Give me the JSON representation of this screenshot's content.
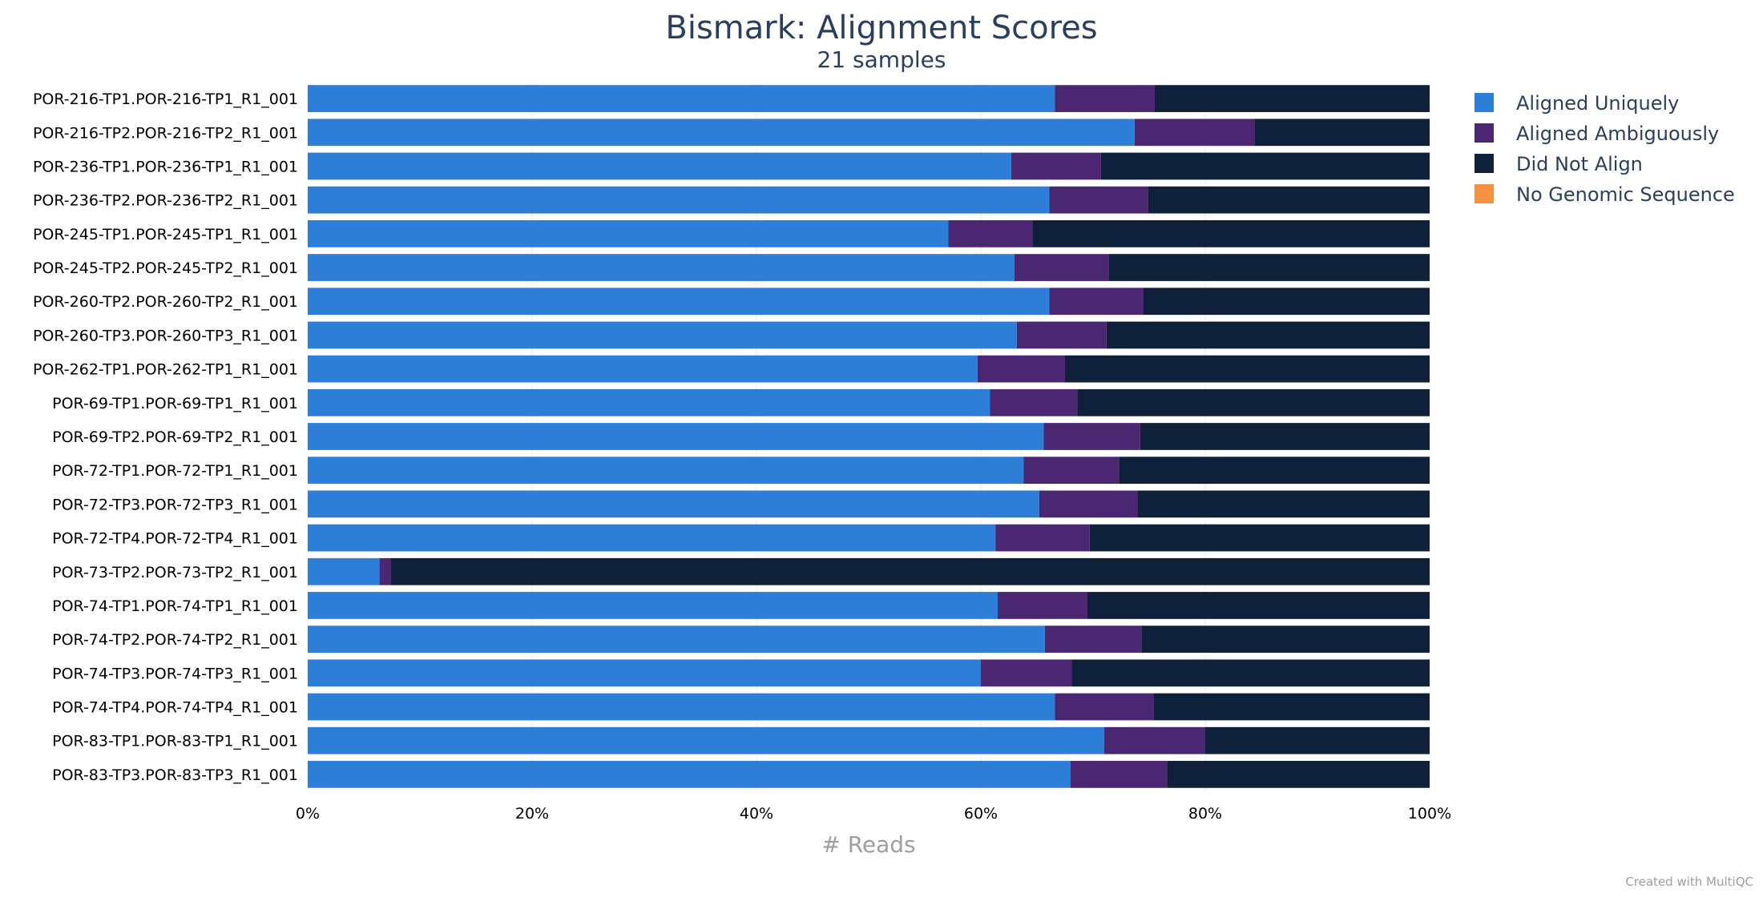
{
  "chart_data": {
    "type": "bar",
    "orientation": "horizontal",
    "stacked": true,
    "normalized": true,
    "title": "Bismark: Alignment Scores",
    "subtitle": "21 samples",
    "xlabel": "# Reads",
    "xlim": [
      0,
      100
    ],
    "x_ticks": [
      "0%",
      "20%",
      "40%",
      "60%",
      "80%",
      "100%"
    ],
    "grid": true,
    "legend_position": "top-right",
    "categories": [
      "POR-216-TP1.POR-216-TP1_R1_001",
      "POR-216-TP2.POR-216-TP2_R1_001",
      "POR-236-TP1.POR-236-TP1_R1_001",
      "POR-236-TP2.POR-236-TP2_R1_001",
      "POR-245-TP1.POR-245-TP1_R1_001",
      "POR-245-TP2.POR-245-TP2_R1_001",
      "POR-260-TP2.POR-260-TP2_R1_001",
      "POR-260-TP3.POR-260-TP3_R1_001",
      "POR-262-TP1.POR-262-TP1_R1_001",
      "POR-69-TP1.POR-69-TP1_R1_001",
      "POR-69-TP2.POR-69-TP2_R1_001",
      "POR-72-TP1.POR-72-TP1_R1_001",
      "POR-72-TP3.POR-72-TP3_R1_001",
      "POR-72-TP4.POR-72-TP4_R1_001",
      "POR-73-TP2.POR-73-TP2_R1_001",
      "POR-74-TP1.POR-74-TP1_R1_001",
      "POR-74-TP2.POR-74-TP2_R1_001",
      "POR-74-TP3.POR-74-TP3_R1_001",
      "POR-74-TP4.POR-74-TP4_R1_001",
      "POR-83-TP1.POR-83-TP1_R1_001",
      "POR-83-TP3.POR-83-TP3_R1_001"
    ],
    "series": [
      {
        "name": "Aligned Uniquely",
        "color": "#2e7dd7",
        "values": [
          66.6,
          73.7,
          62.7,
          66.1,
          57.1,
          63.0,
          66.1,
          63.2,
          59.7,
          60.8,
          65.6,
          63.8,
          65.2,
          61.3,
          6.4,
          61.5,
          65.7,
          60.0,
          66.6,
          71.0,
          68.0
        ]
      },
      {
        "name": "Aligned Ambiguously",
        "color": "#4b2671",
        "values": [
          8.9,
          10.7,
          8.0,
          8.8,
          7.5,
          8.4,
          8.4,
          8.0,
          7.8,
          7.8,
          8.6,
          8.5,
          8.8,
          8.4,
          1.0,
          8.0,
          8.6,
          8.1,
          8.8,
          9.0,
          8.6
        ]
      },
      {
        "name": "Did Not Align",
        "color": "#0e2139",
        "values": [
          24.5,
          15.6,
          29.3,
          25.1,
          35.4,
          28.6,
          25.5,
          28.8,
          32.5,
          31.4,
          25.8,
          27.7,
          26.0,
          30.3,
          92.6,
          30.5,
          25.7,
          31.9,
          24.6,
          20.0,
          23.4
        ]
      },
      {
        "name": "No Genomic Sequence",
        "color": "#f4913e",
        "values": [
          0,
          0,
          0,
          0,
          0,
          0,
          0,
          0,
          0,
          0,
          0,
          0,
          0,
          0,
          0,
          0,
          0,
          0,
          0,
          0,
          0
        ]
      }
    ],
    "credit": "Created with MultiQC"
  }
}
